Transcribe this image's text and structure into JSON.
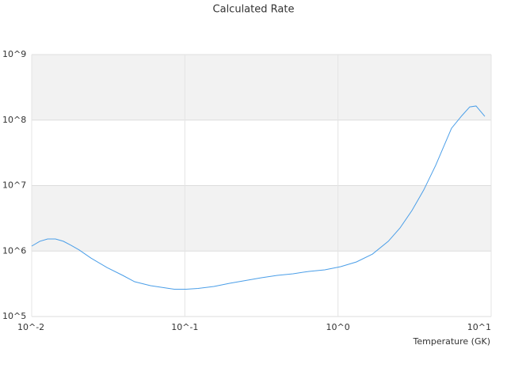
{
  "chart_data": {
    "type": "line",
    "title": "Calculated Rate",
    "x_label": "Temperature (GK)",
    "log_x": true,
    "log_y": true,
    "grid": true,
    "color": "#4a9ee8",
    "x": [
      0.01,
      0.0113,
      0.0127,
      0.0143,
      0.0161,
      0.0181,
      0.0204,
      0.0244,
      0.031,
      0.0393,
      0.047,
      0.0597,
      0.0757,
      0.0853,
      0.102,
      0.122,
      0.155,
      0.196,
      0.249,
      0.316,
      0.401,
      0.509,
      0.646,
      0.82,
      1.04,
      1.32,
      1.68,
      2.13,
      2.54,
      3.04,
      3.63,
      4.34,
      5.51,
      6.44,
      7.25,
      7.97,
      9.09
    ],
    "values": [
      1190000,
      1410000,
      1530000,
      1530000,
      1410000,
      1220000,
      1040000,
      780000,
      560000,
      425000,
      340000,
      296000,
      272000,
      261000,
      261000,
      269000,
      288000,
      322000,
      355000,
      391000,
      425000,
      450000,
      489000,
      517000,
      577000,
      682000,
      900000,
      1410000,
      2250000,
      4160000,
      8570000,
      20300000,
      75000000,
      117000000,
      159000000,
      164000000,
      114000000
    ],
    "xlim": [
      0.01,
      10
    ],
    "xticks": [
      {
        "value": 0.01,
        "label": "10^-2"
      },
      {
        "value": 0.1,
        "label": "10^-1"
      },
      {
        "value": 1,
        "label": "10^0"
      },
      {
        "value": 10,
        "label": "10^1"
      }
    ],
    "ylim": [
      100000,
      1000000000
    ],
    "yticks": [
      {
        "value": 100000,
        "label": "10^5"
      },
      {
        "value": 1000000,
        "label": "10^6"
      },
      {
        "value": 10000000,
        "label": "10^7"
      },
      {
        "value": 100000000,
        "label": "10^8"
      },
      {
        "value": 1000000000,
        "label": "10^9"
      }
    ]
  }
}
